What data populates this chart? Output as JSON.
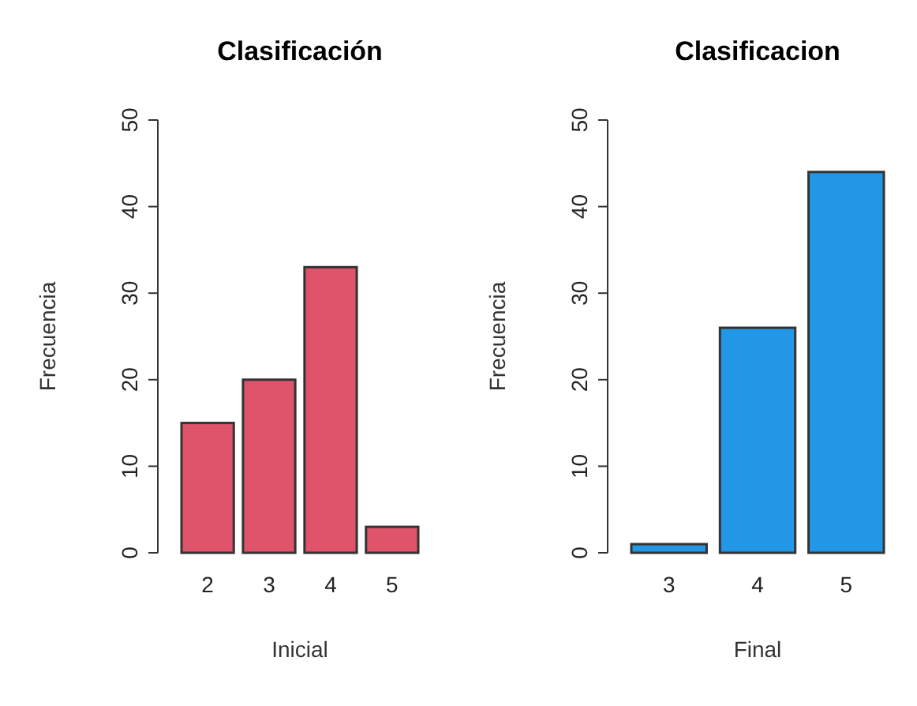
{
  "chart_data": [
    {
      "type": "bar",
      "title": "Clasificación",
      "xlabel": "Inicial",
      "ylabel": "Frecuencia",
      "categories": [
        "2",
        "3",
        "4",
        "5"
      ],
      "values": [
        15,
        20,
        33,
        3
      ],
      "color": "#df536b",
      "ylim": [
        0,
        50
      ],
      "yticks": [
        0,
        10,
        20,
        30,
        40,
        50
      ]
    },
    {
      "type": "bar",
      "title": "Clasificacion",
      "xlabel": "Final",
      "ylabel": "Frecuencia",
      "categories": [
        "3",
        "4",
        "5"
      ],
      "values": [
        1,
        26,
        44
      ],
      "color": "#2297e6",
      "ylim": [
        0,
        50
      ],
      "yticks": [
        0,
        10,
        20,
        30,
        40,
        50
      ]
    }
  ]
}
